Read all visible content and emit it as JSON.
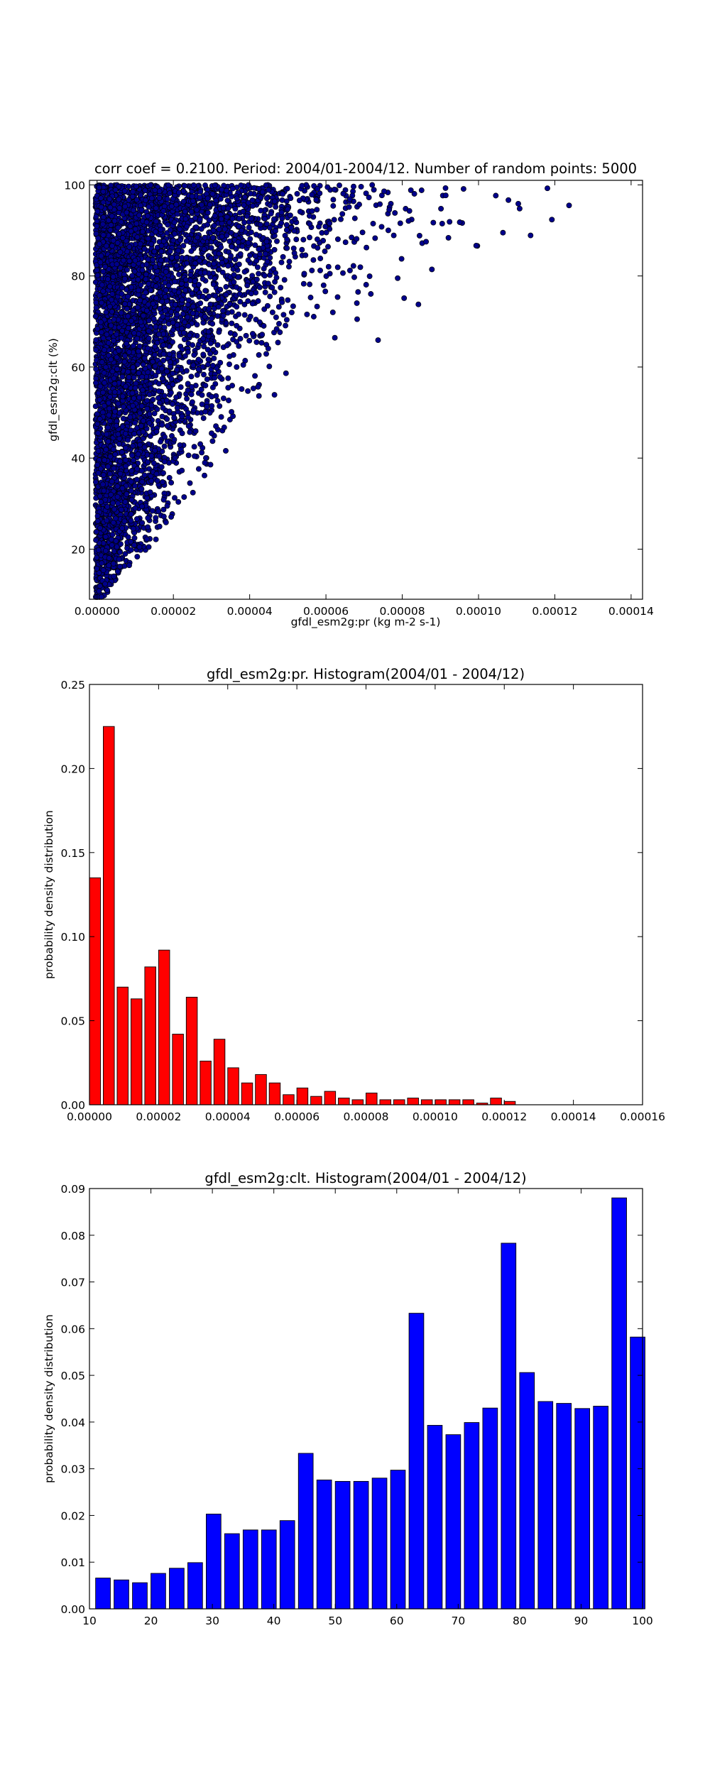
{
  "chart_data": [
    {
      "type": "scatter",
      "title": "corr coef = 0.2100.  Period: 2004/01-2004/12.  Number of random points: 5000",
      "xlabel": "gfdl_esm2g:pr (kg m-2 s-1)",
      "ylabel": "gfdl_esm2g:clt (%)",
      "xlim": [
        -2e-06,
        0.000143
      ],
      "ylim": [
        9,
        101
      ],
      "xticks": [
        0,
        2e-05,
        4e-05,
        6e-05,
        8e-05,
        0.0001,
        0.00012,
        0.00014
      ],
      "xtick_labels": [
        "0.00000",
        "0.00002",
        "0.00004",
        "0.00006",
        "0.00008",
        "0.00010",
        "0.00012",
        "0.00014"
      ],
      "yticks": [
        20,
        40,
        60,
        80,
        100
      ],
      "ytick_labels": [
        "20",
        "40",
        "60",
        "80",
        "100"
      ],
      "marker_color": "#00008b",
      "n_points": 5000,
      "grid": false
    },
    {
      "type": "bar",
      "title": "gfdl_esm2g:pr. Histogram(2004/01 - 2004/12)",
      "xlabel": "",
      "ylabel": "probability density distribution",
      "bar_color": "#ff0000",
      "xlim": [
        0,
        0.00016
      ],
      "ylim": [
        0,
        0.25
      ],
      "bin_width": 4e-06,
      "bin_starts": [
        0,
        4e-06,
        8e-06,
        1.2e-05,
        1.6e-05,
        2e-05,
        2.4e-05,
        2.8e-05,
        3.2e-05,
        3.6e-05,
        4e-05,
        4.4e-05,
        4.8e-05,
        5.2e-05,
        5.6e-05,
        6e-05,
        6.4e-05,
        6.8e-05,
        7.2e-05,
        7.6e-05,
        8e-05,
        8.4e-05,
        8.8e-05,
        9.2e-05,
        9.6e-05,
        0.0001,
        0.000104,
        0.000108,
        0.000112,
        0.000116,
        0.00012,
        0.000124,
        0.000128,
        0.000132,
        0.000136
      ],
      "values": [
        0.135,
        0.225,
        0.07,
        0.063,
        0.082,
        0.092,
        0.042,
        0.064,
        0.026,
        0.039,
        0.022,
        0.013,
        0.018,
        0.013,
        0.006,
        0.01,
        0.005,
        0.008,
        0.004,
        0.003,
        0.007,
        0.003,
        0.003,
        0.004,
        0.003,
        0.003,
        0.003,
        0.003,
        0.001,
        0.004,
        0.002,
        0,
        0,
        0,
        0
      ],
      "xticks": [
        0,
        2e-05,
        4e-05,
        6e-05,
        8e-05,
        0.0001,
        0.00012,
        0.00014,
        0.00016
      ],
      "xtick_labels": [
        "0.00000",
        "0.00002",
        "0.00004",
        "0.00006",
        "0.00008",
        "0.00010",
        "0.00012",
        "0.00014",
        "0.00016"
      ],
      "yticks": [
        0,
        0.05,
        0.1,
        0.15,
        0.2,
        0.25
      ],
      "ytick_labels": [
        "0.00",
        "0.05",
        "0.10",
        "0.15",
        "0.20",
        "0.25"
      ],
      "grid": false
    },
    {
      "type": "bar",
      "title": "gfdl_esm2g:clt. Histogram(2004/01 - 2004/12)",
      "xlabel": "",
      "ylabel": "probability density distribution",
      "bar_color": "#0000ff",
      "xlim": [
        10,
        100
      ],
      "ylim": [
        0,
        0.09
      ],
      "bin_width": 3,
      "bin_starts": [
        11,
        14,
        17,
        20,
        23,
        26,
        29,
        32,
        35,
        38,
        41,
        44,
        47,
        50,
        53,
        56,
        59,
        62,
        65,
        68,
        71,
        74,
        77,
        80,
        83,
        86,
        89,
        92,
        95,
        98
      ],
      "values": [
        0.0066,
        0.0062,
        0.0056,
        0.0076,
        0.0087,
        0.0099,
        0.0203,
        0.0161,
        0.0169,
        0.0169,
        0.0189,
        0.0333,
        0.0276,
        0.0273,
        0.0273,
        0.028,
        0.0297,
        0.0633,
        0.0393,
        0.0373,
        0.0399,
        0.043,
        0.0783,
        0.0506,
        0.0444,
        0.044,
        0.0429,
        0.0434,
        0.088,
        0.0582
      ],
      "xticks": [
        10,
        20,
        30,
        40,
        50,
        60,
        70,
        80,
        90,
        100
      ],
      "xtick_labels": [
        "10",
        "20",
        "30",
        "40",
        "50",
        "60",
        "70",
        "80",
        "90",
        "100"
      ],
      "yticks": [
        0,
        0.01,
        0.02,
        0.03,
        0.04,
        0.05,
        0.06,
        0.07,
        0.08,
        0.09
      ],
      "ytick_labels": [
        "0.00",
        "0.01",
        "0.02",
        "0.03",
        "0.04",
        "0.05",
        "0.06",
        "0.07",
        "0.08",
        "0.09"
      ],
      "grid": false
    }
  ]
}
